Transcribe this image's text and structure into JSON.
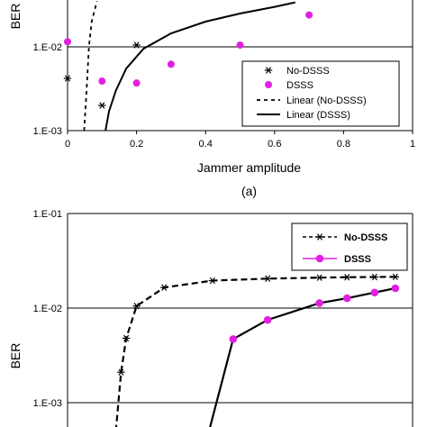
{
  "chart_data": [
    {
      "type": "scatter",
      "panel_label": "(a)",
      "xlabel": "Jammer amplitude",
      "ylabel": "BER",
      "xlim": [
        0,
        1
      ],
      "ylim_log": [
        0.001,
        0.035
      ],
      "xticks": [
        "0",
        "0.2",
        "0.4",
        "0.6",
        "0.8",
        "1"
      ],
      "yticks": [
        "1.E-03",
        "1.E-02"
      ],
      "grid": "horizontal",
      "legend_placement": "bottom-right",
      "legend": [
        "No-DSSS",
        "DSSS",
        "Linear (No-DSSS)",
        "Linear (DSSS)"
      ],
      "series": [
        {
          "name": "No-DSSS",
          "marker": "asterisk",
          "color": "#000000",
          "x": [
            0,
            0.1,
            0.2
          ],
          "y": [
            0.0042,
            0.002,
            0.0105
          ]
        },
        {
          "name": "DSSS",
          "marker": "circle",
          "color": "#e020e0",
          "x": [
            0,
            0.1,
            0.2,
            0.3,
            0.5,
            0.7
          ],
          "y": [
            0.0115,
            0.0039,
            0.0037,
            0.0062,
            0.0105,
            0.024
          ]
        },
        {
          "name": "Linear (No-DSSS)",
          "style": "dashed",
          "color": "#000000",
          "x": [
            0.048,
            0.055,
            0.062,
            0.07,
            0.085
          ],
          "y": [
            0.001,
            0.003,
            0.01,
            0.02,
            0.035
          ]
        },
        {
          "name": "Linear (DSSS)",
          "style": "solid",
          "color": "#000000",
          "x": [
            0.11,
            0.12,
            0.14,
            0.17,
            0.22,
            0.3,
            0.4,
            0.5,
            0.6,
            0.66
          ],
          "y": [
            0.001,
            0.0017,
            0.003,
            0.0055,
            0.0095,
            0.0145,
            0.02,
            0.025,
            0.03,
            0.034
          ]
        }
      ]
    },
    {
      "type": "line",
      "ylabel": "BER",
      "ylim_log": [
        0.0005,
        0.1
      ],
      "yticks": [
        "1.E-01",
        "1.E-02",
        "1.E-03"
      ],
      "grid": "horizontal",
      "legend_placement": "top-right",
      "legend": [
        "No-DSSS",
        "DSSS"
      ],
      "series": [
        {
          "name": "No-DSSS",
          "style": "dashed",
          "marker": "asterisk",
          "color": "#000000",
          "x": [
            0.14,
            0.155,
            0.17,
            0.2,
            0.28,
            0.42,
            0.58,
            0.73,
            0.81,
            0.89,
            0.95
          ],
          "y": [
            0.0005,
            0.0021,
            0.0048,
            0.0105,
            0.0165,
            0.0195,
            0.0205,
            0.021,
            0.0212,
            0.0213,
            0.0214
          ]
        },
        {
          "name": "DSSS",
          "style": "solid",
          "marker": "circle",
          "color": "#e020e0",
          "x": [
            0.41,
            0.48,
            0.58,
            0.73,
            0.81,
            0.89,
            0.95
          ],
          "y": [
            0.0005,
            0.0047,
            0.0075,
            0.0113,
            0.0127,
            0.0146,
            0.0162
          ]
        }
      ]
    }
  ]
}
